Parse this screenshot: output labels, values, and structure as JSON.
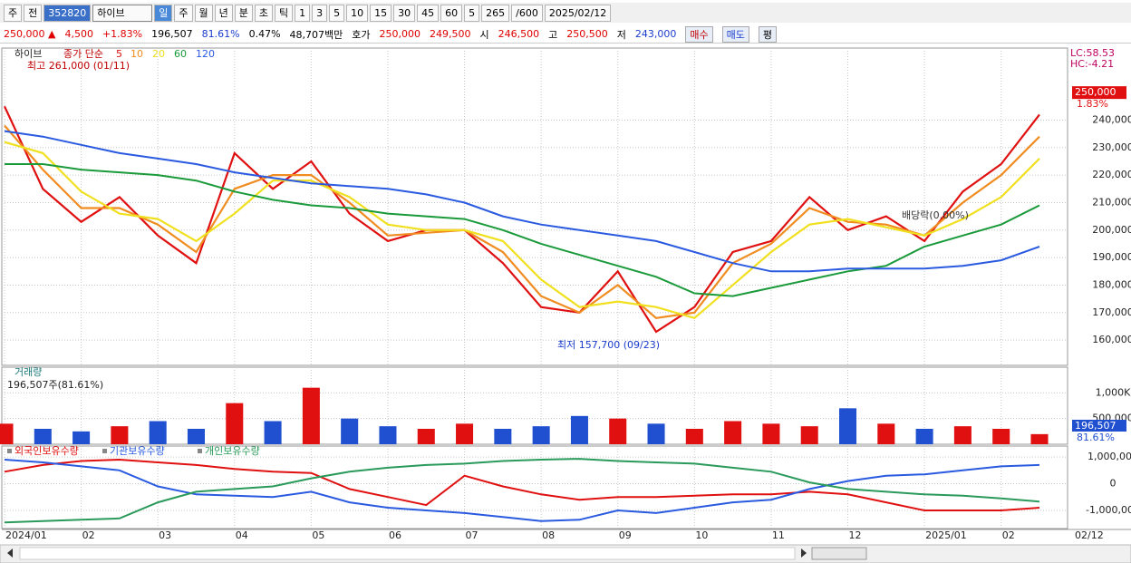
{
  "toolbar": {
    "items": [
      "주",
      "전",
      "352820",
      "하이브",
      "일",
      "주",
      "월",
      "년",
      "분",
      "초",
      "틱",
      "1",
      "3",
      "5",
      "10",
      "15",
      "30",
      "45",
      "60",
      "5",
      "265",
      "/600",
      "2025/02/12"
    ]
  },
  "infobar": {
    "items": [
      {
        "text": "250,000 ▲",
        "color": "#e00000"
      },
      {
        "text": "4,500",
        "color": "#e00000"
      },
      {
        "text": "+1.83%",
        "color": "#e00000"
      },
      {
        "text": "196,507",
        "color": "#000"
      },
      {
        "text": "81.61%",
        "color": "#1a3ccc"
      },
      {
        "text": "0.47%",
        "color": "#000"
      },
      {
        "text": "48,707백만",
        "color": "#000"
      },
      {
        "text": "호가",
        "color": "#000"
      },
      {
        "text": "250,000",
        "color": "#e00000"
      },
      {
        "text": "249,500",
        "color": "#e00000"
      },
      {
        "text": "시",
        "color": "#000"
      },
      {
        "text": "246,500",
        "color": "#e00000"
      },
      {
        "text": "고",
        "color": "#000"
      },
      {
        "text": "250,500",
        "color": "#e00000"
      },
      {
        "text": "저",
        "color": "#000"
      },
      {
        "text": "243,000",
        "color": "#1a3ccc"
      },
      {
        "text": "매수",
        "color": "#c00000"
      },
      {
        "text": "매도",
        "color": "#1a3ccc"
      },
      {
        "text": "평",
        "color": "#000"
      }
    ]
  },
  "chart_data": [
    {
      "type": "line",
      "title": "하이브",
      "subtitle": "종가 단순",
      "annotations": [
        "최고 261,000 (01/11)",
        "최저 157,700 (09/23)",
        "배당락(0.00%)"
      ],
      "corner_labels": [
        "LC:58.53",
        "HC:-4.21"
      ],
      "last_value": 250000,
      "last_label": "250,000",
      "change_label": "1.83%",
      "ylim": [
        150800,
        266200
      ],
      "yticks": [
        {
          "value": 160000,
          "label": "160,000"
        },
        {
          "value": 170000,
          "label": "170,000"
        },
        {
          "value": 180000,
          "label": "180,000"
        },
        {
          "value": 190000,
          "label": "190,000"
        },
        {
          "value": 200000,
          "label": "200,000"
        },
        {
          "value": 210000,
          "label": "210,000"
        },
        {
          "value": 220000,
          "label": "220,000"
        },
        {
          "value": 230000,
          "label": "230,000"
        },
        {
          "value": 240000,
          "label": "240,000"
        }
      ],
      "grid": true,
      "series": [
        {
          "name": "5",
          "color": "#e01010",
          "values": [
            245000,
            215000,
            203000,
            212000,
            198000,
            188000,
            228000,
            215000,
            225000,
            206000,
            196000,
            200000,
            200000,
            188000,
            172000,
            170000,
            185000,
            163000,
            172000,
            192000,
            196000,
            212000,
            200000,
            205000,
            196000,
            214000,
            224000,
            242000
          ]
        },
        {
          "name": "10",
          "color": "#f08c20",
          "values": [
            238000,
            222000,
            208000,
            208000,
            202000,
            192000,
            215000,
            220000,
            220000,
            210000,
            198000,
            199000,
            200000,
            192000,
            176000,
            170000,
            180000,
            168000,
            170000,
            188000,
            195000,
            208000,
            203000,
            202000,
            198000,
            210000,
            220000,
            234000
          ]
        },
        {
          "name": "20",
          "color": "#f0e020",
          "values": [
            232000,
            228000,
            214000,
            206000,
            204000,
            196000,
            206000,
            218000,
            218000,
            212000,
            202000,
            200000,
            200000,
            196000,
            182000,
            172000,
            174000,
            172000,
            168000,
            180000,
            192000,
            202000,
            204000,
            201000,
            198000,
            204000,
            212000,
            226000
          ]
        },
        {
          "name": "60",
          "color": "#1a9a3a",
          "values": [
            224000,
            224000,
            222000,
            221000,
            220000,
            218000,
            214000,
            211000,
            209000,
            208000,
            206000,
            205000,
            204000,
            200000,
            195000,
            191000,
            187000,
            183000,
            177000,
            176000,
            179000,
            182000,
            185000,
            187000,
            194000,
            198000,
            202000,
            209000
          ]
        },
        {
          "name": "120",
          "color": "#2a5ae0",
          "values": [
            236000,
            234000,
            231000,
            228000,
            226000,
            224000,
            221000,
            219000,
            217000,
            216000,
            215000,
            213000,
            210000,
            205000,
            202000,
            200000,
            198000,
            196000,
            192000,
            188000,
            185000,
            185000,
            186000,
            186000,
            186000,
            187000,
            189000,
            194000
          ]
        }
      ]
    },
    {
      "type": "bar",
      "title": "거래량",
      "subtitle": "196,507주(81.61%)",
      "last_label": "196,507",
      "ratio_label": "81.61%",
      "up_color": "#e01010",
      "down_color": "#2050d0",
      "ylim": [
        0,
        1500000
      ],
      "yticks": [
        {
          "value": 500000,
          "label": "500,000"
        },
        {
          "value": 1000000,
          "label": "1,000K"
        }
      ],
      "grid": true,
      "values": [
        400000,
        300000,
        250000,
        350000,
        450000,
        300000,
        800000,
        450000,
        1100000,
        500000,
        350000,
        300000,
        400000,
        300000,
        350000,
        550000,
        500000,
        400000,
        300000,
        450000,
        400000,
        350000,
        700000,
        400000,
        300000,
        350000,
        300000,
        196507
      ]
    },
    {
      "type": "line",
      "ylim": [
        -1680000,
        1410000
      ],
      "yticks": [
        {
          "value": -1000000,
          "label": "-1,000,000"
        },
        0,
        {
          "value": 1000000,
          "label": "1,000,000"
        }
      ],
      "grid": true,
      "categories": [
        "2024/01",
        null,
        "02",
        null,
        "03",
        null,
        "04",
        null,
        "05",
        null,
        "06",
        null,
        "07",
        null,
        "08",
        null,
        "09",
        null,
        "10",
        null,
        "11",
        null,
        "12",
        null,
        "2025/01",
        null,
        "02",
        null
      ],
      "x_end_label": "02/12",
      "series": [
        {
          "name": "외국인보유수량",
          "color": "#e01010",
          "values": [
            450000,
            700000,
            850000,
            900000,
            800000,
            700000,
            550000,
            450000,
            400000,
            -200000,
            -500000,
            -800000,
            300000,
            -100000,
            -400000,
            -600000,
            -500000,
            -500000,
            -450000,
            -400000,
            -400000,
            -300000,
            -400000,
            -700000,
            -1000000,
            -1000000,
            -1000000,
            -900000
          ]
        },
        {
          "name": "기관보유수량",
          "color": "#2a5ae0",
          "values": [
            900000,
            800000,
            650000,
            500000,
            -100000,
            -400000,
            -450000,
            -500000,
            -300000,
            -700000,
            -900000,
            -1000000,
            -1100000,
            -1250000,
            -1400000,
            -1350000,
            -1000000,
            -1100000,
            -900000,
            -700000,
            -600000,
            -200000,
            100000,
            300000,
            350000,
            500000,
            650000,
            700000
          ]
        },
        {
          "name": "개인보유수량",
          "color": "#2a9a5a",
          "values": [
            -1450000,
            -1400000,
            -1350000,
            -1300000,
            -700000,
            -300000,
            -200000,
            -100000,
            200000,
            450000,
            600000,
            700000,
            750000,
            850000,
            900000,
            930000,
            850000,
            800000,
            750000,
            600000,
            450000,
            50000,
            -200000,
            -300000,
            -400000,
            -450000,
            -550000,
            -670000
          ]
        }
      ]
    }
  ]
}
